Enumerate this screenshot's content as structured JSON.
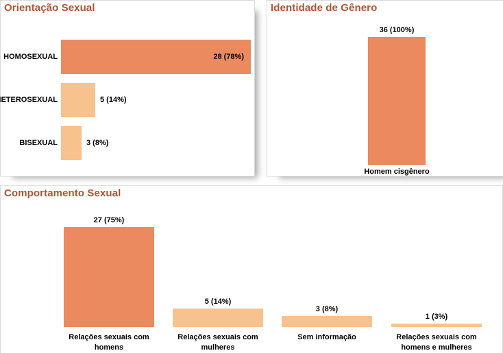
{
  "colors": {
    "title_text": "#b0532f",
    "bar_highlight": "#ea8a5e",
    "bar_muted": "#f8c28e",
    "label_text": "#000000",
    "card_border": "#d9d9d9",
    "background": "#ffffff"
  },
  "chart_data": [
    {
      "id": "orientacao-sexual",
      "type": "bar",
      "orientation": "horizontal",
      "title": "Orientação Sexual",
      "categories": [
        "HOMOSEXUAL",
        "HETEROSEXUAL",
        "BISEXUAL"
      ],
      "values": [
        28,
        5,
        3
      ],
      "data_labels": [
        "28 (78%)",
        "5 (14%)",
        "3 (8%)"
      ],
      "bar_colors": [
        "#ea8a5e",
        "#f8c28e",
        "#f8c28e"
      ],
      "legend": "none",
      "axes": "hidden",
      "grid": "off"
    },
    {
      "id": "identidade-de-genero",
      "type": "bar",
      "orientation": "vertical",
      "title": "Identidade de Gênero",
      "categories": [
        "Homem cisgênero"
      ],
      "values": [
        36
      ],
      "data_labels": [
        "36 (100%)"
      ],
      "bar_colors": [
        "#ea8a5e"
      ],
      "legend": "none",
      "axes": "hidden",
      "grid": "off"
    },
    {
      "id": "comportamento-sexual",
      "type": "bar",
      "orientation": "vertical",
      "title": "Comportamento Sexual",
      "categories": [
        "Relações sexuais com homens",
        "Relações sexuais com mulheres",
        "Sem informação",
        "Relações sexuais com homens e mulheres"
      ],
      "values": [
        27,
        5,
        3,
        1
      ],
      "data_labels": [
        "27 (75%)",
        "5 (14%)",
        "3 (8%)",
        "1 (3%)"
      ],
      "bar_colors": [
        "#ea8a5e",
        "#f8c28e",
        "#f8c28e",
        "#f8c28e"
      ],
      "legend": "none",
      "axes": "hidden",
      "grid": "off"
    }
  ]
}
